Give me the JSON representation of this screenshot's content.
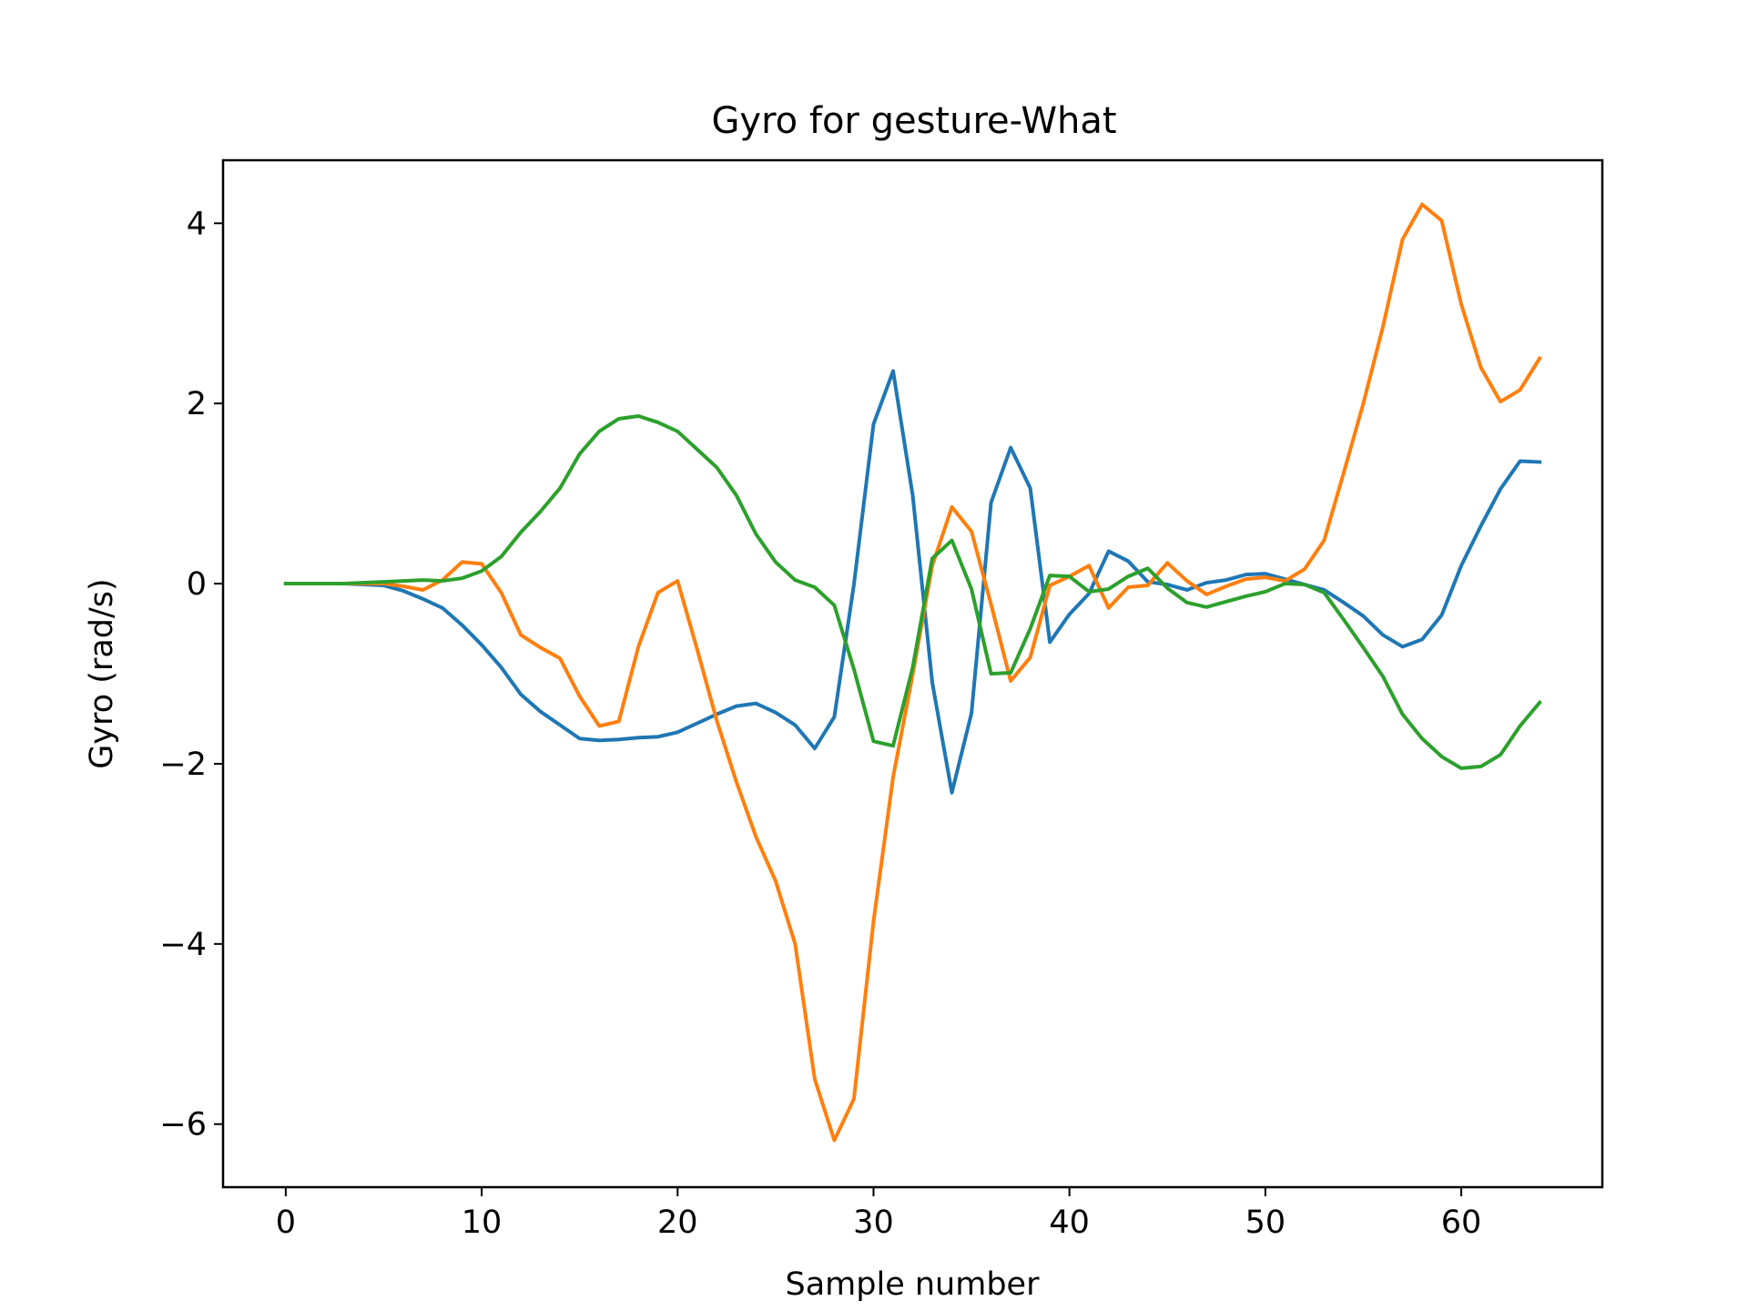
{
  "chart_data": {
    "type": "line",
    "title": "Gyro for gesture-What",
    "xlabel": "Sample number",
    "ylabel": "Gyro  (rad/s)",
    "xlim": [
      -3.2,
      67.2
    ],
    "ylim": [
      -6.7,
      4.7
    ],
    "xticks": [
      0,
      10,
      20,
      30,
      40,
      50,
      60
    ],
    "yticks": [
      4,
      2,
      0,
      -2,
      -4,
      -6
    ],
    "xtick_labels": [
      "0",
      "10",
      "20",
      "30",
      "40",
      "50",
      "60"
    ],
    "ytick_labels": [
      "4",
      "2",
      "0",
      "−2",
      "−4",
      "−6"
    ],
    "grid": false,
    "x": [
      0,
      1,
      2,
      3,
      4,
      5,
      6,
      7,
      8,
      9,
      10,
      11,
      12,
      13,
      14,
      15,
      16,
      17,
      18,
      19,
      20,
      21,
      22,
      23,
      24,
      25,
      26,
      27,
      28,
      29,
      30,
      31,
      32,
      33,
      34,
      35,
      36,
      37,
      38,
      39,
      40,
      41,
      42,
      43,
      44,
      45,
      46,
      47,
      48,
      49,
      50,
      51,
      52,
      53,
      54,
      55,
      56,
      57,
      58,
      59,
      60,
      61,
      62,
      63,
      64
    ],
    "series": [
      {
        "color": "#1f77b4",
        "values": [
          0,
          0,
          0,
          0,
          -0.01,
          -0.02,
          -0.08,
          -0.17,
          -0.27,
          -0.46,
          -0.68,
          -0.93,
          -1.23,
          -1.42,
          -1.57,
          -1.72,
          -1.74,
          -1.73,
          -1.71,
          -1.7,
          -1.65,
          -1.55,
          -1.45,
          -1.36,
          -1.33,
          -1.43,
          -1.57,
          -1.83,
          -1.48,
          -0.01,
          1.77,
          2.36,
          0.98,
          -1.1,
          -2.32,
          -1.44,
          0.9,
          1.51,
          1.06,
          -0.65,
          -0.34,
          -0.11,
          0.36,
          0.25,
          0.02,
          -0.01,
          -0.07,
          0.01,
          0.04,
          0.1,
          0.11,
          0.05,
          -0.01,
          -0.07,
          -0.21,
          -0.36,
          -0.57,
          -0.7,
          -0.62,
          -0.35,
          0.2,
          0.64,
          1.05,
          1.36,
          1.35
        ]
      },
      {
        "color": "#ff7f0e",
        "values": [
          0,
          0,
          0,
          0,
          0,
          0,
          -0.03,
          -0.07,
          0.04,
          0.24,
          0.22,
          -0.1,
          -0.57,
          -0.71,
          -0.83,
          -1.25,
          -1.58,
          -1.53,
          -0.7,
          -0.1,
          0.03,
          -0.73,
          -1.52,
          -2.2,
          -2.81,
          -3.3,
          -4.0,
          -5.5,
          -6.18,
          -5.72,
          -3.75,
          -2.15,
          -1.01,
          0.2,
          0.85,
          0.58,
          -0.23,
          -1.08,
          -0.82,
          -0.02,
          0.08,
          0.2,
          -0.27,
          -0.04,
          -0.02,
          0.23,
          0.03,
          -0.12,
          -0.03,
          0.05,
          0.07,
          0.03,
          0.16,
          0.48,
          1.23,
          2.0,
          2.85,
          3.82,
          4.21,
          4.03,
          3.1,
          2.4,
          2.02,
          2.15,
          2.5
        ]
      },
      {
        "color": "#2ca02c",
        "values": [
          0,
          0,
          0,
          0,
          0.01,
          0.02,
          0.03,
          0.04,
          0.03,
          0.06,
          0.14,
          0.3,
          0.57,
          0.8,
          1.06,
          1.44,
          1.69,
          1.83,
          1.86,
          1.79,
          1.69,
          1.49,
          1.29,
          0.98,
          0.55,
          0.24,
          0.04,
          -0.04,
          -0.24,
          -0.95,
          -1.75,
          -1.8,
          -0.93,
          0.28,
          0.48,
          -0.06,
          -1.0,
          -0.99,
          -0.5,
          0.09,
          0.08,
          -0.09,
          -0.06,
          0.08,
          0.17,
          -0.05,
          -0.21,
          -0.26,
          -0.2,
          -0.14,
          -0.09,
          0,
          -0.01,
          -0.1,
          -0.4,
          -0.71,
          -1.03,
          -1.45,
          -1.72,
          -1.92,
          -2.05,
          -2.03,
          -1.9,
          -1.58,
          -1.32
        ]
      }
    ]
  }
}
